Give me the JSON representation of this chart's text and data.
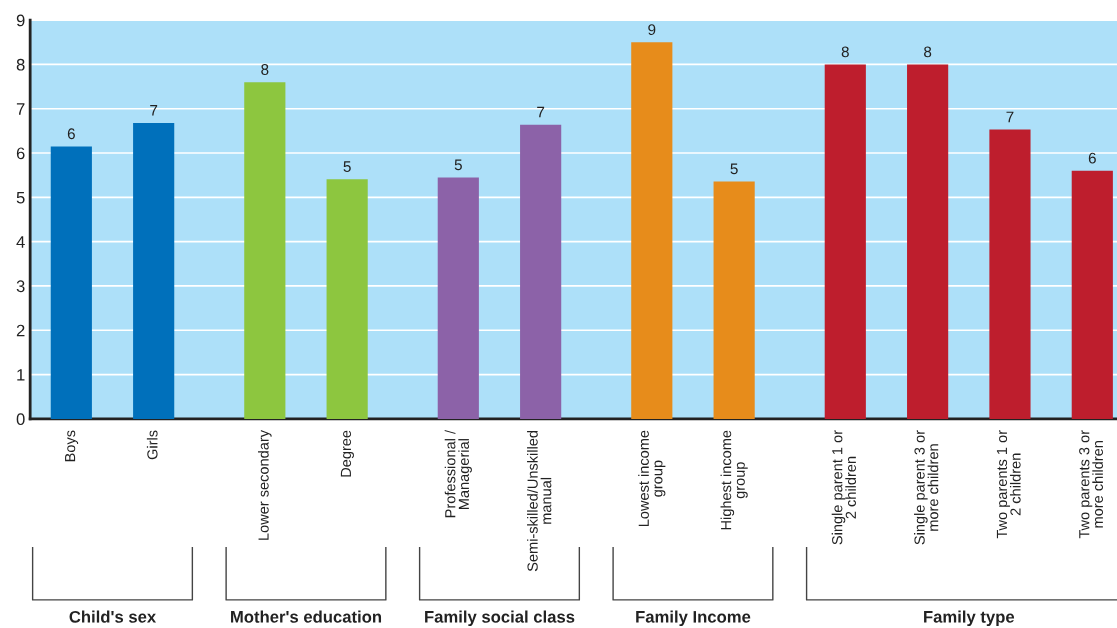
{
  "chart_data": {
    "type": "bar",
    "categories": [
      "Boys",
      "Girls",
      "Lower secondary",
      "Degree",
      "Professional /\nManagerial",
      "Semi-skilled/Unskilled\nmanual",
      "Lowest income\ngroup",
      "Highest income\ngroup",
      "Single parent 1 or\n2 children",
      "Single parent 3 or\nmore children",
      "Two parents 1 or\n2 children",
      "Two parents 3 or\nmore children"
    ],
    "values": [
      6.15,
      6.68,
      7.6,
      5.41,
      5.45,
      6.64,
      8.5,
      5.36,
      8.0,
      8.0,
      6.53,
      5.6
    ],
    "colors": [
      "#0070bb",
      "#0070bb",
      "#8dc63f",
      "#8dc63f",
      "#8c62a8",
      "#8c62a8",
      "#e78c1b",
      "#e78c1b",
      "#be1e2d",
      "#be1e2d",
      "#be1e2d",
      "#be1e2d"
    ],
    "value_labels": [
      "6",
      "7",
      "8",
      "5",
      "5",
      "7",
      "9",
      "5",
      "8",
      "8",
      "7",
      "6"
    ],
    "ylim": [
      0,
      9
    ],
    "yticks": [
      0,
      1,
      2,
      3,
      4,
      5,
      6,
      7,
      8,
      9
    ],
    "grid": "y",
    "annotations": [
      "Child's sex",
      "Mother's education",
      "Family social class",
      "Family Income",
      "Family type"
    ]
  }
}
